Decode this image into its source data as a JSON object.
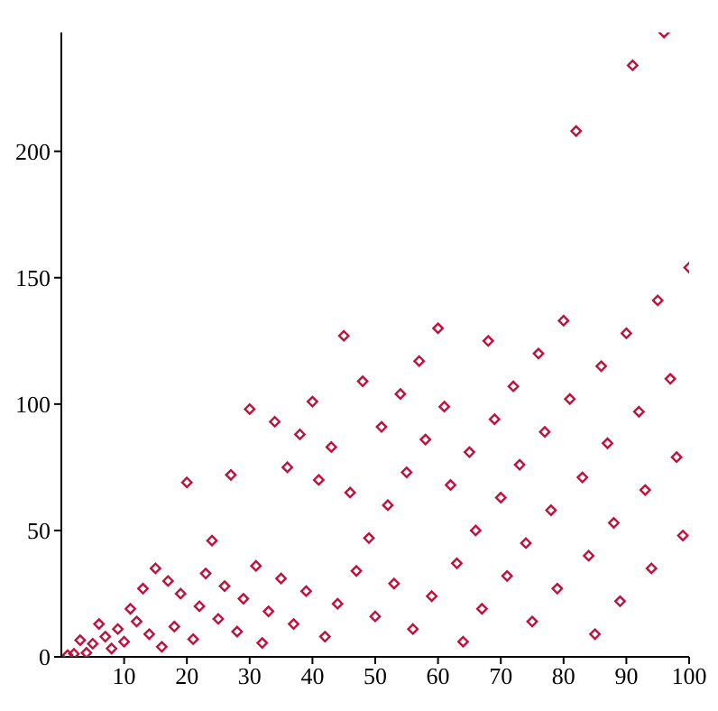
{
  "chart_data": {
    "type": "scatter",
    "color": "#c0103c",
    "marker": "diamond",
    "grid": false,
    "legend": false,
    "x": [
      1,
      2,
      3,
      4,
      5,
      6,
      7,
      8,
      9,
      10,
      11,
      12,
      13,
      14,
      15,
      16,
      17,
      18,
      19,
      20,
      21,
      22,
      23,
      24,
      25,
      26,
      27,
      28,
      29,
      30,
      31,
      32,
      33,
      34,
      35,
      36,
      37,
      38,
      39,
      40,
      41,
      42,
      43,
      44,
      45,
      46,
      47,
      48,
      49,
      50,
      51,
      52,
      53,
      54,
      55,
      56,
      57,
      58,
      59,
      60,
      61,
      62,
      63,
      64,
      65,
      66,
      67,
      68,
      69,
      70,
      71,
      72,
      73,
      74,
      75,
      76,
      77,
      78,
      79,
      80,
      81,
      82,
      83,
      84,
      85,
      86,
      87,
      88,
      89,
      90,
      91,
      92,
      93,
      94,
      95,
      96,
      97,
      98,
      99,
      100
    ],
    "values": [
      0.7,
      1.2,
      6.6,
      1.6,
      5.2,
      13,
      8,
      3.3,
      11,
      6,
      19,
      14,
      27,
      9,
      35,
      4,
      30,
      12,
      25,
      69,
      7,
      20,
      33,
      46,
      15,
      28,
      72,
      10,
      23,
      98,
      36,
      5.5,
      18,
      93,
      31,
      75,
      13,
      88,
      26,
      101,
      70,
      8,
      83,
      21,
      127,
      65,
      34,
      109,
      47,
      16,
      91,
      60,
      29,
      104,
      73,
      11,
      117,
      86,
      24,
      130,
      99,
      68,
      37,
      6,
      81,
      50,
      19,
      125,
      94,
      63,
      32,
      107,
      76,
      45,
      14,
      120,
      89,
      58,
      27,
      133,
      102,
      208,
      71,
      40,
      9,
      115,
      84.5,
      53,
      22,
      128,
      234,
      97,
      66,
      35,
      141,
      247,
      110,
      79,
      48,
      154
    ],
    "xlim": [
      0,
      100
    ],
    "xticks": [
      10,
      20,
      30,
      40,
      50,
      60,
      70,
      80,
      90,
      100
    ],
    "ylim": [
      0,
      247
    ],
    "yticks": [
      0,
      50,
      100,
      150,
      200
    ]
  }
}
